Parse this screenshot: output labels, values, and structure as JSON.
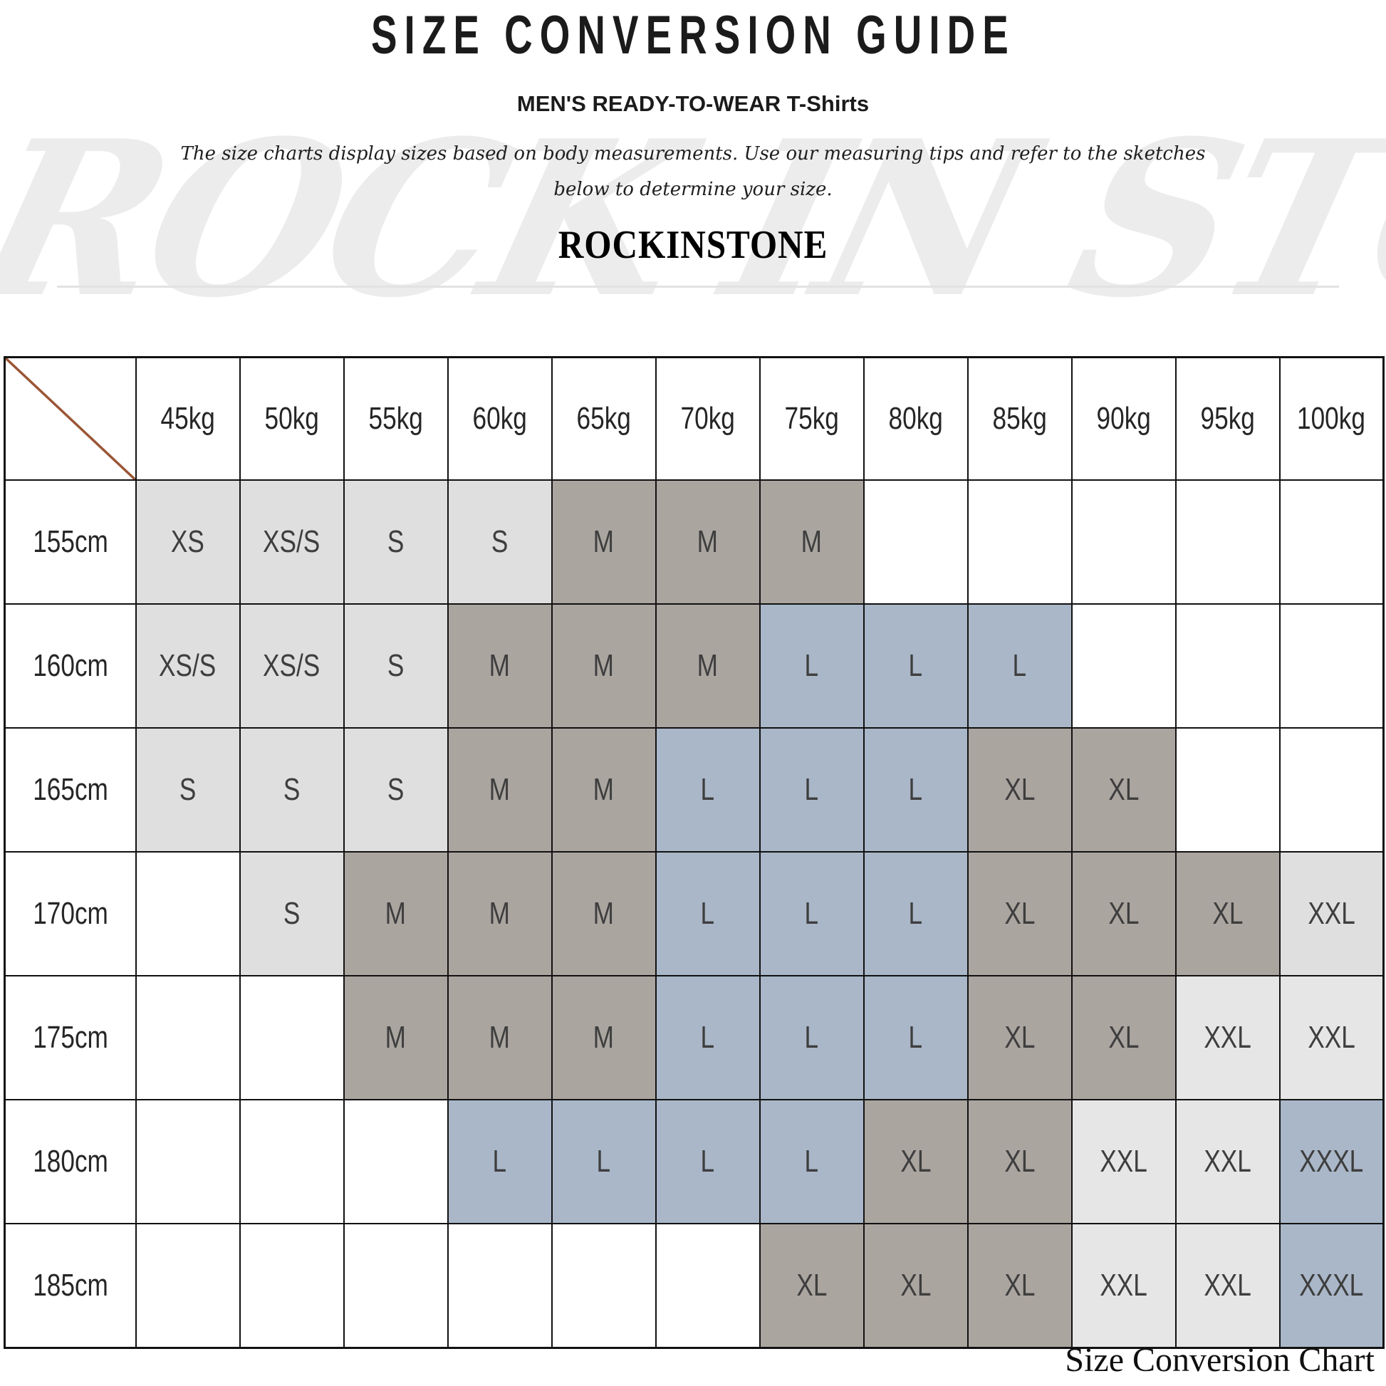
{
  "header": {
    "title": "SIZE CONVERSION GUIDE",
    "subtitle": "MEN'S READY-TO-WEAR T-Shirts",
    "description_line1": "The size charts display sizes based on body measurements.  Use our measuring tips and refer to the sketches",
    "description_line2": "below to determine your size.",
    "brand": "ROCKINSTONE",
    "watermark": "ROCK IN STONE"
  },
  "footer": {
    "caption": "Size Conversion Chart"
  },
  "colors": {
    "diagonal_line": "#9a5535",
    "table_border": "#111111",
    "header_text": "#262626",
    "size_text": "#3e3e3e",
    "watermark_gray": "#ececec"
  },
  "chart_data": {
    "type": "table",
    "title": "SIZE CONVERSION GUIDE",
    "corner_icon": "diagonal-line",
    "weight_headers": [
      "45kg",
      "50kg",
      "55kg",
      "60kg",
      "65kg",
      "70kg",
      "75kg",
      "80kg",
      "85kg",
      "90kg",
      "95kg",
      "100kg"
    ],
    "fill_colors": {
      "g": "#dfdfdf",
      "e": "#e6e6e6",
      "t": "#aba5a0",
      "b": "#a9b7c8",
      "w": "#ffffff"
    },
    "rows": [
      {
        "height": "155cm",
        "sizes": [
          "XS",
          "XS/S",
          "S",
          "S",
          "M",
          "M",
          "M",
          "",
          "",
          "",
          "",
          ""
        ],
        "fills": [
          "g",
          "g",
          "g",
          "g",
          "t",
          "t",
          "t",
          "w",
          "w",
          "w",
          "w",
          "w"
        ]
      },
      {
        "height": "160cm",
        "sizes": [
          "XS/S",
          "XS/S",
          "S",
          "M",
          "M",
          "M",
          "L",
          "L",
          "L",
          "",
          "",
          ""
        ],
        "fills": [
          "g",
          "g",
          "g",
          "t",
          "t",
          "t",
          "b",
          "b",
          "b",
          "w",
          "w",
          "w"
        ]
      },
      {
        "height": "165cm",
        "sizes": [
          "S",
          "S",
          "S",
          "M",
          "M",
          "L",
          "L",
          "L",
          "XL",
          "XL",
          "",
          ""
        ],
        "fills": [
          "g",
          "g",
          "g",
          "t",
          "t",
          "b",
          "b",
          "b",
          "t",
          "t",
          "w",
          "w"
        ]
      },
      {
        "height": "170cm",
        "sizes": [
          "",
          "S",
          "M",
          "M",
          "M",
          "L",
          "L",
          "L",
          "XL",
          "XL",
          "XL",
          "XXL"
        ],
        "fills": [
          "w",
          "g",
          "t",
          "t",
          "t",
          "b",
          "b",
          "b",
          "t",
          "t",
          "t",
          "g"
        ]
      },
      {
        "height": "175cm",
        "sizes": [
          "",
          "",
          "M",
          "M",
          "M",
          "L",
          "L",
          "L",
          "XL",
          "XL",
          "XXL",
          "XXL"
        ],
        "fills": [
          "w",
          "w",
          "t",
          "t",
          "t",
          "b",
          "b",
          "b",
          "t",
          "t",
          "e",
          "e"
        ]
      },
      {
        "height": "180cm",
        "sizes": [
          "",
          "",
          "",
          "L",
          "L",
          "L",
          "L",
          "XL",
          "XL",
          "XXL",
          "XXL",
          "XXXL"
        ],
        "fills": [
          "w",
          "w",
          "w",
          "b",
          "b",
          "b",
          "b",
          "t",
          "t",
          "e",
          "e",
          "b"
        ]
      },
      {
        "height": "185cm",
        "sizes": [
          "",
          "",
          "",
          "",
          "",
          "",
          "XL",
          "XL",
          "XL",
          "XXL",
          "XXL",
          "XXXL"
        ],
        "fills": [
          "w",
          "w",
          "w",
          "w",
          "w",
          "w",
          "t",
          "t",
          "t",
          "e",
          "e",
          "b"
        ]
      }
    ]
  }
}
